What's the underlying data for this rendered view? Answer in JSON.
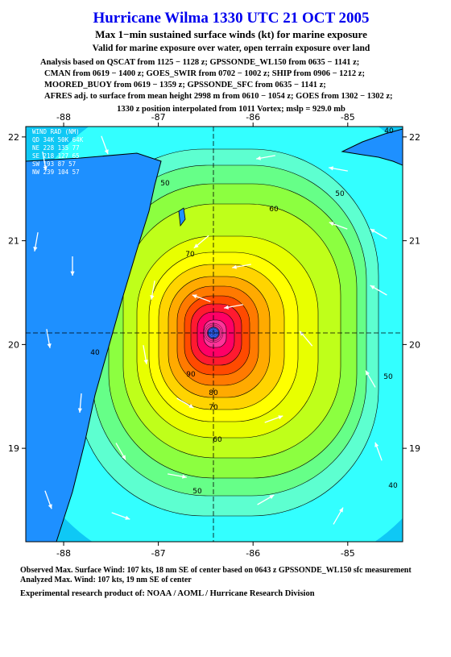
{
  "header": {
    "title": "Hurricane Wilma 1330 UTC 21 OCT 2005",
    "subtitle": "Max 1−min sustained surface winds (kt) for marine exposure",
    "validity": "Valid for marine exposure over water, open terrain exposure over land",
    "analysis_lines": [
      "Analysis based on  QSCAT from 1125 − 1128 z;  GPSSONDE_WL150 from 0635 − 1141 z;",
      "CMAN from 0619 − 1400 z;  GOES_SWIR from 0702 − 1002 z;  SHIP from 0906 − 1212 z;",
      "MOORED_BUOY from 0619 − 1359 z;  GPSSONDE_SFC from 0635 − 1141 z;",
      "AFRES adj. to surface from mean height 2998 m from 0610 − 1054 z;  GOES from 1302 − 1302 z;"
    ],
    "position": "1330 z position interpolated from 1011 Vortex; mslp = 929.0 mb"
  },
  "map": {
    "lon_range": [
      -88.4,
      -84.42
    ],
    "lat_range": [
      22.1,
      18.1
    ],
    "lon_ticks": [
      -88,
      -87,
      -86,
      -85
    ],
    "lat_ticks": [
      22,
      21,
      20,
      19
    ],
    "ocean_color": "#0fc8f5",
    "land_color": "#1e90ff",
    "band_colors": [
      "#33ffff",
      "#5dffd0",
      "#66ff88",
      "#8cff40",
      "#bfff1a",
      "#e8ff00",
      "#ffff00",
      "#ffd400",
      "#ffaa00",
      "#ff7a00",
      "#ff4a00",
      "#ff1a30",
      "#ff0066",
      "#ff3399"
    ],
    "eye_color": "#3366ff",
    "contour_labels": [
      50,
      60,
      70,
      90,
      80,
      70,
      60,
      50,
      40,
      50,
      40,
      50,
      40
    ],
    "wind_radii": {
      "title": "WIND RAD (NM)",
      "rows": [
        "QD  34K  50K  64K",
        "NE  228  135  77",
        "SE  218  127  65",
        "SW  193  87   57",
        "NW  239  104  57"
      ]
    }
  },
  "footer": {
    "observed": "Observed Max. Surface Wind: 107 kts, 18 nm SE of center based on 0643 z GPSSONDE_WL150 sfc measurement",
    "analyzed": "Analyzed Max. Wind: 107 kts, 19 nm SE of center",
    "credit": "Experimental research product of:  NOAA / AOML / Hurricane Research Division"
  }
}
